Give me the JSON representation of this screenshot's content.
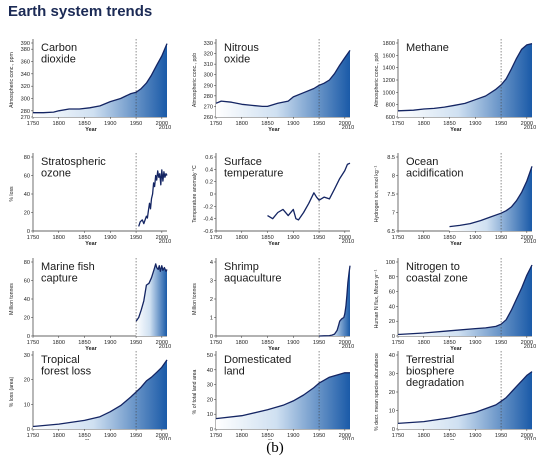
{
  "figure": {
    "title": "Earth system trends",
    "caption": "(b)",
    "colors": {
      "line": "#142563",
      "fill_dark": "#1a5aa8",
      "fill_light": "#ffffff",
      "divider": "#444444",
      "axis": "#333333"
    }
  },
  "chart_data": [
    {
      "type": "area",
      "title": [
        "Carbon",
        "dioxide"
      ],
      "ylabel": "Atmospheric conc., ppm",
      "xlabel": "Year",
      "ylim": [
        270,
        390
      ],
      "yticks": [
        270,
        280,
        300,
        320,
        340,
        360,
        380,
        390
      ],
      "xlim": [
        1750,
        2010
      ],
      "xticks": [
        1750,
        1800,
        1850,
        1900,
        1950,
        2000,
        2010
      ],
      "divider": 1950,
      "style": "fill",
      "series": [
        {
          "x": [
            1750,
            1770,
            1790,
            1800,
            1820,
            1840,
            1860,
            1880,
            1900,
            1920,
            1930,
            1940,
            1950,
            1960,
            1970,
            1980,
            1990,
            2000,
            2010
          ],
          "y": [
            277,
            277,
            278,
            280,
            283,
            283,
            285,
            288,
            295,
            300,
            304,
            308,
            310,
            316,
            325,
            338,
            354,
            369,
            389
          ]
        }
      ]
    },
    {
      "type": "area",
      "title": [
        "Nitrous",
        "oxide"
      ],
      "ylabel": "Atmospheric conc., ppb",
      "xlabel": "Year",
      "ylim": [
        260,
        330
      ],
      "yticks": [
        260,
        270,
        280,
        290,
        300,
        310,
        320,
        330
      ],
      "xlim": [
        1750,
        2010
      ],
      "xticks": [
        1750,
        1800,
        1850,
        1900,
        1950,
        2000,
        2010
      ],
      "divider": 1950,
      "style": "fill",
      "series": [
        {
          "x": [
            1750,
            1760,
            1780,
            1800,
            1820,
            1840,
            1850,
            1870,
            1890,
            1900,
            1920,
            1940,
            1950,
            1960,
            1970,
            1980,
            1990,
            2000,
            2010
          ],
          "y": [
            273,
            275,
            274,
            272,
            271,
            270,
            270,
            273,
            275,
            279,
            283,
            287,
            290,
            292,
            295,
            301,
            309,
            316,
            323
          ]
        }
      ]
    },
    {
      "type": "area",
      "title": [
        "Methane"
      ],
      "ylabel": "Atmospheric conc., ppb",
      "xlabel": "Year",
      "ylim": [
        600,
        1800
      ],
      "yticks": [
        600,
        800,
        1000,
        1200,
        1400,
        1600,
        1800
      ],
      "xlim": [
        1750,
        2010
      ],
      "xticks": [
        1750,
        1800,
        1850,
        1900,
        1950,
        2000,
        2010
      ],
      "divider": 1950,
      "style": "fill",
      "series": [
        {
          "x": [
            1750,
            1780,
            1800,
            1820,
            1840,
            1860,
            1880,
            1900,
            1920,
            1940,
            1950,
            1960,
            1970,
            1980,
            1990,
            2000,
            2010
          ],
          "y": [
            700,
            710,
            730,
            740,
            760,
            790,
            820,
            880,
            940,
            1050,
            1120,
            1220,
            1380,
            1550,
            1700,
            1770,
            1790
          ]
        }
      ]
    },
    {
      "type": "line",
      "title": [
        "Stratospheric",
        "ozone"
      ],
      "ylabel": "% loss",
      "xlabel": "Year",
      "ylim": [
        0,
        80
      ],
      "yticks": [
        0,
        20,
        40,
        60,
        80
      ],
      "xlim": [
        1750,
        2010
      ],
      "xticks": [
        1750,
        1800,
        1850,
        1900,
        1950,
        2000,
        2010
      ],
      "divider": 1950,
      "style": "line",
      "series": [
        {
          "x": [
            1955,
            1958,
            1962,
            1965,
            1968,
            1970,
            1972,
            1974,
            1976,
            1978,
            1980,
            1982,
            1984,
            1986,
            1988,
            1990,
            1992,
            1994,
            1996,
            1998,
            2000,
            2002,
            2004,
            2006,
            2008,
            2010
          ],
          "y": [
            5,
            10,
            12,
            8,
            13,
            16,
            14,
            22,
            30,
            24,
            35,
            40,
            52,
            48,
            60,
            55,
            65,
            58,
            62,
            50,
            66,
            54,
            64,
            58,
            62,
            60
          ]
        }
      ]
    },
    {
      "type": "line",
      "title": [
        "Surface",
        "temperature"
      ],
      "ylabel": "Temperature anomaly °C",
      "xlabel": "Year",
      "ylim": [
        -0.6,
        0.6
      ],
      "yticks": [
        -0.6,
        -0.4,
        -0.2,
        0.0,
        0.2,
        0.4,
        0.6
      ],
      "xlim": [
        1750,
        2010
      ],
      "xticks": [
        1750,
        1800,
        1850,
        1900,
        1950,
        2000,
        2010
      ],
      "divider": 1950,
      "style": "line",
      "series": [
        {
          "x": [
            1850,
            1860,
            1870,
            1880,
            1890,
            1900,
            1905,
            1910,
            1920,
            1930,
            1940,
            1945,
            1950,
            1960,
            1970,
            1980,
            1990,
            2000,
            2005,
            2010
          ],
          "y": [
            -0.35,
            -0.4,
            -0.3,
            -0.25,
            -0.35,
            -0.25,
            -0.4,
            -0.42,
            -0.3,
            -0.15,
            0.02,
            -0.05,
            -0.1,
            -0.05,
            -0.08,
            0.08,
            0.25,
            0.38,
            0.48,
            0.5
          ]
        }
      ]
    },
    {
      "type": "line",
      "title": [
        "Ocean",
        "acidification"
      ],
      "ylabel": "Hydrogen ion, nmol kg⁻¹",
      "xlabel": "Year",
      "ylim": [
        6.5,
        8.5
      ],
      "yticks": [
        6.5,
        7.0,
        7.5,
        8.0,
        8.5
      ],
      "xlim": [
        1750,
        2010
      ],
      "xticks": [
        1750,
        1800,
        1850,
        1900,
        1950,
        2000,
        2010
      ],
      "divider": 1950,
      "style": "fill",
      "series": [
        {
          "x": [
            1850,
            1870,
            1890,
            1910,
            1930,
            1950,
            1960,
            1970,
            1980,
            1990,
            2000,
            2010
          ],
          "y": [
            6.62,
            6.65,
            6.7,
            6.78,
            6.88,
            6.98,
            7.05,
            7.15,
            7.32,
            7.55,
            7.85,
            8.25
          ]
        }
      ]
    },
    {
      "type": "area",
      "title": [
        "Marine fish",
        "capture"
      ],
      "ylabel": "Million tonnes",
      "xlabel": "Year",
      "ylim": [
        0,
        80
      ],
      "yticks": [
        0,
        20,
        40,
        60,
        80
      ],
      "xlim": [
        1750,
        2010
      ],
      "xticks": [
        1750,
        1800,
        1850,
        1900,
        1950,
        2000,
        2010
      ],
      "divider": 1950,
      "style": "fill",
      "series": [
        {
          "x": [
            1950,
            1955,
            1960,
            1965,
            1970,
            1975,
            1980,
            1985,
            1988,
            1990,
            1993,
            1995,
            1997,
            2000,
            2002,
            2005,
            2008,
            2010
          ],
          "y": [
            16,
            20,
            28,
            38,
            55,
            57,
            63,
            72,
            78,
            74,
            72,
            76,
            70,
            76,
            71,
            74,
            70,
            72
          ]
        }
      ]
    },
    {
      "type": "area",
      "title": [
        "Shrimp",
        "aquaculture"
      ],
      "ylabel": "Million tonnes",
      "xlabel": "Year",
      "ylim": [
        0,
        4
      ],
      "yticks": [
        0,
        1,
        2,
        3,
        4
      ],
      "xlim": [
        1750,
        2010
      ],
      "xticks": [
        1750,
        1800,
        1850,
        1900,
        1950,
        2000,
        2010
      ],
      "divider": 1950,
      "style": "fill",
      "series": [
        {
          "x": [
            1950,
            1960,
            1970,
            1975,
            1980,
            1985,
            1988,
            1990,
            1993,
            1995,
            1998,
            2000,
            2002,
            2004,
            2006,
            2008,
            2010
          ],
          "y": [
            0,
            0.01,
            0.02,
            0.05,
            0.1,
            0.3,
            0.6,
            0.8,
            0.9,
            0.95,
            1.0,
            1.2,
            1.6,
            2.2,
            2.9,
            3.4,
            3.8
          ]
        }
      ]
    },
    {
      "type": "area",
      "title": [
        "Nitrogen to",
        "coastal zone"
      ],
      "ylabel": "Human N flux, Mtons yr⁻¹",
      "xlabel": "Year",
      "ylim": [
        0,
        100
      ],
      "yticks": [
        0,
        20,
        40,
        60,
        80,
        100
      ],
      "xlim": [
        1750,
        2010
      ],
      "xticks": [
        1750,
        1800,
        1850,
        1900,
        1950,
        2000,
        2010
      ],
      "divider": 1950,
      "style": "fill",
      "series": [
        {
          "x": [
            1750,
            1800,
            1850,
            1900,
            1920,
            1940,
            1950,
            1960,
            1970,
            1980,
            1990,
            2000,
            2010
          ],
          "y": [
            2,
            4,
            7,
            10,
            11,
            13,
            16,
            22,
            35,
            50,
            65,
            82,
            96
          ]
        }
      ]
    },
    {
      "type": "area",
      "title": [
        "Tropical",
        "forest loss"
      ],
      "ylabel": "% loss (area)",
      "xlabel": "Year",
      "ylim": [
        0,
        30
      ],
      "yticks": [
        0,
        10,
        20,
        30
      ],
      "xlim": [
        1750,
        2010
      ],
      "xticks": [
        1750,
        1800,
        1850,
        1900,
        1950,
        2000,
        2010
      ],
      "divider": 1950,
      "style": "fill",
      "series": [
        {
          "x": [
            1750,
            1800,
            1850,
            1880,
            1900,
            1920,
            1940,
            1950,
            1960,
            1970,
            1980,
            1990,
            2000,
            2010
          ],
          "y": [
            1,
            2,
            3.5,
            5,
            7,
            9.5,
            13,
            15,
            17,
            19.5,
            21,
            23,
            25,
            28
          ]
        }
      ]
    },
    {
      "type": "area",
      "title": [
        "Domesticated",
        "land"
      ],
      "ylabel": "% of total land area",
      "xlabel": "Year",
      "ylim": [
        0,
        50
      ],
      "yticks": [
        0,
        10,
        20,
        30,
        40,
        50
      ],
      "xlim": [
        1750,
        2010
      ],
      "xticks": [
        1750,
        1800,
        1850,
        1900,
        1950,
        2000,
        2010
      ],
      "divider": 1950,
      "style": "fill",
      "series": [
        {
          "x": [
            1750,
            1800,
            1850,
            1880,
            1900,
            1920,
            1940,
            1950,
            1960,
            1970,
            1980,
            1990,
            2000,
            2010
          ],
          "y": [
            7,
            9,
            13,
            16,
            19,
            23,
            28,
            31,
            33,
            35,
            36,
            37,
            38,
            38
          ]
        }
      ]
    },
    {
      "type": "area",
      "title": [
        "Terrestrial",
        "biosphere",
        "degradation"
      ],
      "ylabel": "% decr. mean species abundance",
      "xlabel": "Year",
      "ylim": [
        0,
        40
      ],
      "yticks": [
        0,
        10,
        20,
        30,
        40
      ],
      "xlim": [
        1750,
        2010
      ],
      "xticks": [
        1750,
        1800,
        1850,
        1900,
        1950,
        2000,
        2010
      ],
      "divider": 1950,
      "style": "fill",
      "series": [
        {
          "x": [
            1750,
            1800,
            1850,
            1900,
            1920,
            1940,
            1950,
            1960,
            1970,
            1980,
            1990,
            2000,
            2010
          ],
          "y": [
            3,
            4,
            6,
            9,
            11,
            13,
            15,
            17,
            20,
            23,
            26,
            29,
            31
          ]
        }
      ]
    }
  ]
}
